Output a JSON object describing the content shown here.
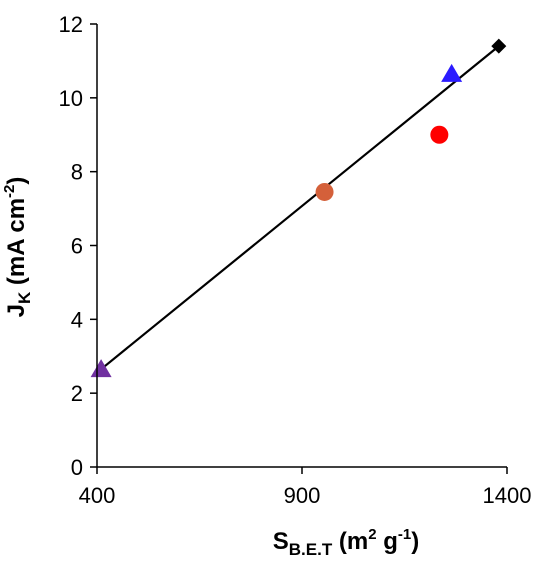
{
  "chart_data": {
    "type": "scatter",
    "title": "",
    "xlabel": {
      "main": "S",
      "sub": "B.E.T",
      "unit_open": " (m",
      "unit_sup1": "2",
      "unit_mid": " g",
      "unit_sup2": "-1",
      "unit_close": ")"
    },
    "ylabel": {
      "main": "J",
      "sub": "K",
      "unit_open": " (mA cm",
      "unit_sup": "-2",
      "unit_close": ")"
    },
    "xlim": [
      400,
      1400
    ],
    "ylim": [
      0,
      12
    ],
    "xticks": [
      400,
      900,
      1400
    ],
    "yticks": [
      0,
      2,
      4,
      6,
      8,
      10,
      12
    ],
    "grid": false,
    "legend": "none",
    "points": [
      {
        "x": 410,
        "y": 2.65,
        "marker": "triangle",
        "color": "#7030A0"
      },
      {
        "x": 955,
        "y": 7.45,
        "marker": "circle",
        "color": "#D4603A"
      },
      {
        "x": 1235,
        "y": 9.0,
        "marker": "circle",
        "color": "#FF0000"
      },
      {
        "x": 1265,
        "y": 10.65,
        "marker": "triangle",
        "color": "#2B1BFF"
      },
      {
        "x": 1380,
        "y": 11.4,
        "marker": "diamond",
        "color": "#000000"
      }
    ],
    "trendline": {
      "x": [
        410,
        1380
      ],
      "y": [
        2.65,
        11.4
      ],
      "color": "#000000"
    }
  }
}
